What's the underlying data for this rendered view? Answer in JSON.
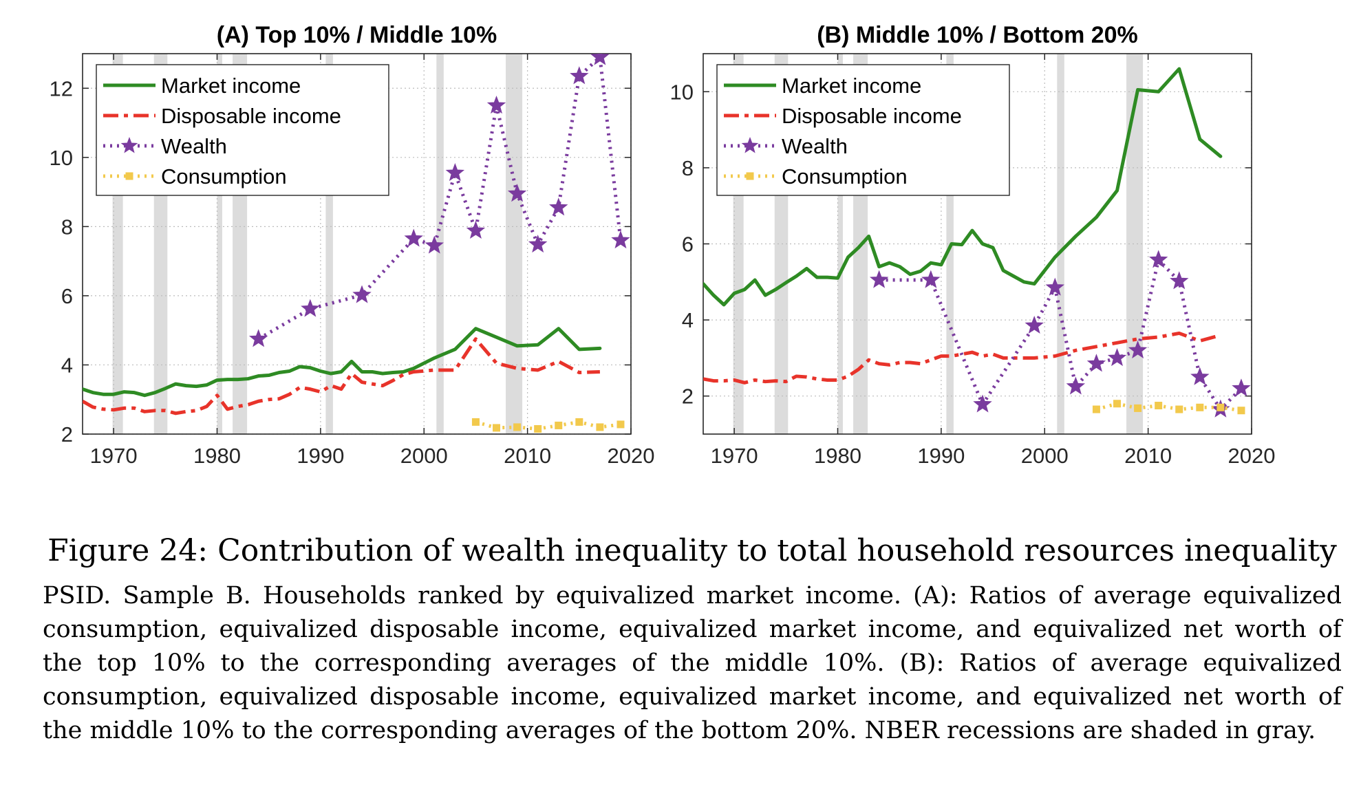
{
  "figure": {
    "title": "Figure 24: Contribution of wealth inequality to total household resources inequality",
    "caption": "PSID. Sample B. Households ranked by equivalized market income. (A): Ratios of average equivalized consumption, equivalized disposable income, equivalized market income, and equivalized net worth of the top 10% to the corresponding averages of the middle 10%. (B): Ratios of average equivalized consumption, equivalized disposable income, equivalized market income, and equivalized net worth of the middle 10% to the corresponding averages of the bottom 20%. NBER recessions are shaded in gray."
  },
  "colors": {
    "market": "#2e8b23",
    "disposable": "#e8332a",
    "wealth": "#7a3b9e",
    "consumption": "#f2c94c",
    "recession": "#dcdcdc"
  },
  "chart_data": [
    {
      "type": "line",
      "title": "(A) Top 10% / Middle 10%",
      "xlim": [
        1967,
        2020
      ],
      "ylim": [
        2,
        13
      ],
      "xticks": [
        1970,
        1980,
        1990,
        2000,
        2010,
        2020
      ],
      "yticks": [
        2,
        4,
        6,
        8,
        10,
        12
      ],
      "grid": true,
      "legend": "top-left",
      "recessions": [
        [
          1969.9,
          1970.9
        ],
        [
          1973.9,
          1975.2
        ],
        [
          1980.0,
          1980.5
        ],
        [
          1981.5,
          1982.9
        ],
        [
          1990.5,
          1991.2
        ],
        [
          2001.2,
          2001.9
        ],
        [
          2007.9,
          2009.5
        ]
      ],
      "series": [
        {
          "name": "Market income",
          "key": "market",
          "x": [
            1967,
            1968,
            1969,
            1970,
            1971,
            1972,
            1973,
            1974,
            1975,
            1976,
            1977,
            1978,
            1979,
            1980,
            1981,
            1982,
            1983,
            1984,
            1985,
            1986,
            1987,
            1988,
            1989,
            1990,
            1991,
            1992,
            1993,
            1994,
            1995,
            1996,
            1997,
            1998,
            1999,
            2001,
            2003,
            2005,
            2007,
            2009,
            2011,
            2013,
            2015,
            2017
          ],
          "y": [
            3.3,
            3.2,
            3.15,
            3.15,
            3.22,
            3.2,
            3.12,
            3.2,
            3.32,
            3.45,
            3.4,
            3.38,
            3.42,
            3.56,
            3.58,
            3.58,
            3.6,
            3.68,
            3.7,
            3.78,
            3.82,
            3.95,
            3.92,
            3.82,
            3.75,
            3.8,
            4.1,
            3.8,
            3.8,
            3.75,
            3.78,
            3.8,
            3.9,
            4.2,
            4.45,
            5.05,
            4.8,
            4.55,
            4.58,
            5.05,
            4.45,
            4.48
          ]
        },
        {
          "name": "Disposable income",
          "key": "disposable",
          "x": [
            1967,
            1968,
            1969,
            1970,
            1971,
            1972,
            1973,
            1974,
            1975,
            1976,
            1977,
            1978,
            1979,
            1980,
            1981,
            1982,
            1983,
            1984,
            1985,
            1986,
            1987,
            1988,
            1989,
            1990,
            1991,
            1992,
            1993,
            1994,
            1995,
            1996,
            1997,
            1998,
            1999,
            2001,
            2003,
            2005,
            2007,
            2009,
            2011,
            2013,
            2015,
            2017
          ],
          "y": [
            2.95,
            2.78,
            2.72,
            2.7,
            2.75,
            2.75,
            2.65,
            2.68,
            2.68,
            2.6,
            2.65,
            2.68,
            2.8,
            3.12,
            2.72,
            2.8,
            2.85,
            2.95,
            3.0,
            3.02,
            3.15,
            3.35,
            3.3,
            3.22,
            3.4,
            3.3,
            3.75,
            3.5,
            3.45,
            3.4,
            3.55,
            3.72,
            3.8,
            3.85,
            3.85,
            4.75,
            4.05,
            3.9,
            3.85,
            4.1,
            3.78,
            3.8
          ]
        },
        {
          "name": "Wealth",
          "key": "wealth",
          "x": [
            1984,
            1989,
            1994,
            1999,
            2001,
            2003,
            2005,
            2007,
            2009,
            2011,
            2013,
            2015,
            2017,
            2019
          ],
          "y": [
            4.75,
            5.62,
            6.02,
            7.65,
            7.45,
            9.55,
            7.88,
            11.5,
            8.95,
            7.48,
            8.55,
            12.35,
            12.9,
            7.6
          ]
        },
        {
          "name": "Consumption",
          "key": "consumption",
          "x": [
            2005,
            2007,
            2009,
            2011,
            2013,
            2015,
            2017,
            2019
          ],
          "y": [
            2.35,
            2.18,
            2.2,
            2.15,
            2.25,
            2.35,
            2.2,
            2.28
          ]
        }
      ]
    },
    {
      "type": "line",
      "title": "(B) Middle 10% / Bottom 20%",
      "xlim": [
        1967,
        2020
      ],
      "ylim": [
        1,
        11
      ],
      "xticks": [
        1970,
        1980,
        1990,
        2000,
        2010,
        2020
      ],
      "yticks": [
        2,
        4,
        6,
        8,
        10
      ],
      "grid": true,
      "legend": "top-left",
      "recessions": [
        [
          1969.9,
          1970.9
        ],
        [
          1973.9,
          1975.2
        ],
        [
          1980.0,
          1980.5
        ],
        [
          1981.5,
          1982.9
        ],
        [
          1990.5,
          1991.2
        ],
        [
          2001.2,
          2001.9
        ],
        [
          2007.9,
          2009.5
        ]
      ],
      "series": [
        {
          "name": "Market income",
          "key": "market",
          "x": [
            1967,
            1968,
            1969,
            1970,
            1971,
            1972,
            1973,
            1974,
            1975,
            1976,
            1977,
            1978,
            1979,
            1980,
            1981,
            1982,
            1983,
            1984,
            1985,
            1986,
            1987,
            1988,
            1989,
            1990,
            1991,
            1992,
            1993,
            1994,
            1995,
            1996,
            1997,
            1998,
            1999,
            2001,
            2003,
            2005,
            2007,
            2009,
            2011,
            2013,
            2015,
            2017
          ],
          "y": [
            4.95,
            4.65,
            4.4,
            4.7,
            4.8,
            5.05,
            4.65,
            4.8,
            4.98,
            5.15,
            5.35,
            5.12,
            5.12,
            5.1,
            5.65,
            5.9,
            6.2,
            5.4,
            5.5,
            5.4,
            5.2,
            5.28,
            5.5,
            5.45,
            6.0,
            5.98,
            6.35,
            6.0,
            5.9,
            5.3,
            5.15,
            5.0,
            4.95,
            5.65,
            6.2,
            6.7,
            7.4,
            10.05,
            10.0,
            10.6,
            8.75,
            8.3
          ]
        },
        {
          "name": "Disposable income",
          "key": "disposable",
          "x": [
            1967,
            1968,
            1969,
            1970,
            1971,
            1972,
            1973,
            1974,
            1975,
            1976,
            1977,
            1978,
            1979,
            1980,
            1981,
            1982,
            1983,
            1984,
            1985,
            1986,
            1987,
            1988,
            1989,
            1990,
            1991,
            1992,
            1993,
            1994,
            1995,
            1996,
            1997,
            1998,
            1999,
            2001,
            2003,
            2005,
            2007,
            2009,
            2011,
            2013,
            2015,
            2017
          ],
          "y": [
            2.45,
            2.4,
            2.4,
            2.42,
            2.35,
            2.42,
            2.38,
            2.4,
            2.38,
            2.52,
            2.5,
            2.45,
            2.42,
            2.42,
            2.52,
            2.7,
            2.95,
            2.85,
            2.82,
            2.88,
            2.88,
            2.85,
            2.95,
            3.05,
            3.05,
            3.1,
            3.15,
            3.05,
            3.1,
            3.0,
            3.0,
            3.0,
            3.0,
            3.05,
            3.2,
            3.3,
            3.4,
            3.5,
            3.55,
            3.65,
            3.45,
            3.6
          ]
        },
        {
          "name": "Wealth",
          "key": "wealth",
          "x": [
            1984,
            1989,
            1994,
            1999,
            2001,
            2003,
            2005,
            2007,
            2009,
            2011,
            2013,
            2015,
            2017,
            2019
          ],
          "y": [
            5.05,
            5.05,
            1.78,
            3.85,
            4.85,
            2.25,
            2.85,
            3.0,
            3.2,
            5.58,
            5.02,
            2.5,
            1.65,
            2.2
          ]
        },
        {
          "name": "Consumption",
          "key": "consumption",
          "x": [
            2005,
            2007,
            2009,
            2011,
            2013,
            2015,
            2017,
            2019
          ],
          "y": [
            1.65,
            1.8,
            1.68,
            1.75,
            1.65,
            1.7,
            1.7,
            1.62
          ]
        }
      ]
    }
  ]
}
